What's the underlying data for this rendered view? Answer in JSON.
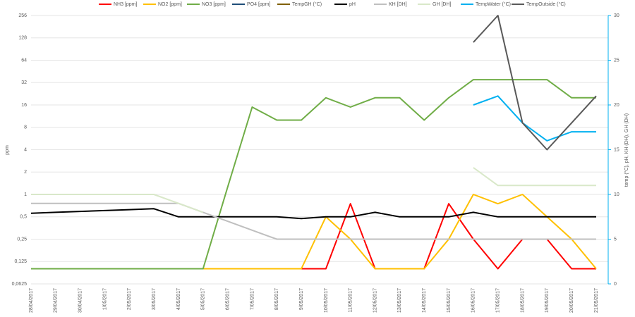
{
  "chart_data": {
    "type": "line",
    "y_label": "ppm",
    "y2_label": "temp (°C), pH, KH (DH), GH (DH)",
    "categories": [
      "28/04/2017",
      "29/04/2017",
      "30/04/2017",
      "1/05/2017",
      "2/05/2017",
      "3/05/2017",
      "4/05/2017",
      "5/05/2017",
      "6/05/2017",
      "7/05/2017",
      "8/05/2017",
      "9/05/2017",
      "10/05/2017",
      "11/05/2017",
      "12/05/2017",
      "13/05/2017",
      "14/05/2017",
      "15/05/2017",
      "16/05/2017",
      "17/05/2017",
      "18/05/2017",
      "19/05/2017",
      "20/05/2017",
      "21/05/2017"
    ],
    "log_scale": true,
    "log_base": 2,
    "grid": true,
    "legend": "top",
    "ylim": [
      0.0625,
      256
    ],
    "yticks": [
      {
        "value": 0.0625,
        "label": "0,0625"
      },
      {
        "value": 0.125,
        "label": "0,125"
      },
      {
        "value": 0.25,
        "label": "0,25"
      },
      {
        "value": 0.5,
        "label": "0,5"
      },
      1,
      2,
      4,
      8,
      16,
      32,
      64,
      128,
      256
    ],
    "y2lim": [
      0,
      30
    ],
    "y2ticks": [
      0,
      5,
      10,
      15,
      20,
      25,
      30
    ],
    "series": [
      {
        "name": "NH3 [ppm]",
        "color": "#ff0000",
        "values": [
          null,
          null,
          null,
          null,
          null,
          null,
          null,
          null,
          null,
          null,
          null,
          0.1,
          0.1,
          0.75,
          0.1,
          0.1,
          0.1,
          0.75,
          0.25,
          0.1,
          0.25,
          0.25,
          0.1,
          0.1
        ]
      },
      {
        "name": "NO2 [ppm]",
        "color": "#ffc000",
        "values": [
          null,
          null,
          null,
          null,
          null,
          null,
          null,
          0.1,
          0.1,
          0.1,
          0.1,
          0.1,
          0.5,
          0.25,
          0.1,
          0.1,
          0.1,
          0.25,
          1,
          0.75,
          1,
          0.5,
          0.25,
          0.1
        ]
      },
      {
        "name": "NO3 [ppm]",
        "color": "#70ad47",
        "values": [
          0.1,
          0.1,
          0.1,
          0.1,
          0.1,
          0.1,
          0.1,
          0.1,
          1.25,
          15,
          10,
          10,
          20,
          15,
          20,
          20,
          10,
          20,
          35,
          35,
          35,
          35,
          20,
          20
        ]
      },
      {
        "name": "PO4 [ppm]",
        "color": "#1f4e79",
        "values": [
          null,
          null,
          null,
          null,
          null,
          null,
          null,
          null,
          null,
          null,
          null,
          null,
          null,
          null,
          null,
          null,
          null,
          null,
          null,
          null,
          null,
          null,
          null,
          null
        ]
      },
      {
        "name": "TempGH (°C)",
        "color": "#806000",
        "axis": "y2",
        "values": [
          null,
          null,
          null,
          null,
          null,
          null,
          null,
          null,
          null,
          null,
          null,
          null,
          null,
          null,
          null,
          null,
          null,
          null,
          null,
          null,
          null,
          null,
          null,
          null
        ]
      },
      {
        "name": "pH",
        "color": "#000000",
        "axis": "y2",
        "values": [
          7.9,
          8.0,
          8.1,
          8.2,
          8.3,
          8.4,
          7.5,
          7.5,
          7.5,
          7.5,
          7.5,
          7.3,
          7.5,
          7.5,
          8.0,
          7.5,
          7.5,
          7.5,
          8.0,
          7.5,
          7.5,
          7.5,
          7.5,
          7.5
        ]
      },
      {
        "name": "KH [DH]",
        "color": "#bfbfbf",
        "axis": "y2",
        "values": [
          9,
          9,
          9,
          9,
          9,
          9,
          9,
          8,
          7,
          6,
          5,
          5,
          5,
          5,
          5,
          5,
          5,
          5,
          5,
          5,
          5,
          5,
          5,
          5
        ]
      },
      {
        "name": "GH [DH]",
        "color": "#d9e8c9",
        "axis": "y2",
        "values": [
          10,
          10,
          10,
          10,
          10,
          10,
          9,
          8,
          null,
          null,
          null,
          null,
          null,
          null,
          null,
          null,
          null,
          null,
          13,
          11,
          11,
          11,
          11,
          11
        ]
      },
      {
        "name": "TempWater (°C)",
        "color": "#00b0f0",
        "axis": "y2",
        "values": [
          null,
          null,
          null,
          null,
          null,
          null,
          null,
          null,
          null,
          null,
          null,
          null,
          null,
          null,
          null,
          null,
          null,
          null,
          20,
          21,
          18,
          16,
          17,
          17
        ]
      },
      {
        "name": "TempOutside (°C)",
        "color": "#595959",
        "axis": "y2",
        "values": [
          null,
          null,
          null,
          null,
          null,
          null,
          null,
          null,
          null,
          null,
          null,
          null,
          null,
          null,
          null,
          null,
          null,
          null,
          27,
          30,
          18,
          15,
          18,
          21
        ]
      }
    ]
  }
}
